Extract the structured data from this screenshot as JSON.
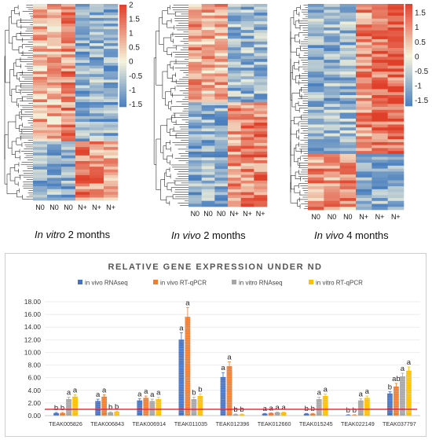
{
  "heatmaps": [
    {
      "caption_italic": "In vitro",
      "caption_rest": " 2 months",
      "columns": [
        "N0",
        "N0",
        "N0",
        "N+",
        "N+",
        "N+"
      ],
      "colorbar_ticks": [
        "2",
        "1.5",
        "1",
        "0.5",
        "0",
        "-0.5",
        "-1",
        "-1.5"
      ],
      "colorbar_range": [
        -1.6,
        2.0
      ]
    },
    {
      "caption_italic": "In vivo",
      "caption_rest": " 2 months",
      "columns": [
        "N0",
        "N0",
        "N0",
        "N+",
        "N+",
        "N+"
      ],
      "colorbar_ticks": [],
      "colorbar_range": [
        -1.6,
        2.0
      ]
    },
    {
      "caption_italic": "In vivo",
      "caption_rest": " 4 months",
      "columns": [
        "N0",
        "N0",
        "N0",
        "N+",
        "N+",
        "N+"
      ],
      "colorbar_ticks": [
        "1.5",
        "1",
        "0.5",
        "0",
        "-0.5",
        "-1",
        "-1.5"
      ],
      "colorbar_range": [
        -1.7,
        1.8
      ]
    }
  ],
  "colors": {
    "heat_low": "#4a7fbf",
    "heat_mid": "#f6f4dc",
    "heat_high": "#e0402a",
    "bar_in_vivo_rnaseq": "#4472c4",
    "bar_in_vivo_rtqpcr": "#ed7d31",
    "bar_in_vitro_rnaseq": "#a5a5a5",
    "bar_in_vitro_rtqpcr": "#ffc000",
    "reference_line": "#e0203a"
  },
  "chart_data": {
    "type": "bar",
    "title": "RELATIVE GENE EXPRESSION UNDER ND",
    "legend_position": "top",
    "categories": [
      "TEAK005826",
      "TEAK006843",
      "TEAK006914",
      "TEAK011035",
      "TEAK012396",
      "TEAK012660",
      "TEAK015245",
      "TEAK022149",
      "TEAK037797"
    ],
    "series": [
      {
        "name": "in vivo RNAseq",
        "values": [
          0.4,
          2.3,
          2.4,
          12.0,
          6.1,
          0.3,
          0.3,
          0.1,
          3.5
        ],
        "errors": [
          0.1,
          0.3,
          0.3,
          1.1,
          0.7,
          0.05,
          0.05,
          0.05,
          0.3
        ]
      },
      {
        "name": "in vivo RT-qPCR",
        "values": [
          0.4,
          3.0,
          2.8,
          15.6,
          7.8,
          0.4,
          0.3,
          0.1,
          4.6
        ],
        "errors": [
          0.1,
          0.3,
          0.3,
          1.5,
          0.7,
          0.05,
          0.05,
          0.05,
          0.5
        ]
      },
      {
        "name": "in vitro RNAseq",
        "values": [
          2.6,
          0.5,
          2.3,
          2.6,
          0.2,
          0.5,
          2.6,
          2.4,
          6.2
        ],
        "errors": [
          0.3,
          0.1,
          0.3,
          0.3,
          0.05,
          0.05,
          0.3,
          0.3,
          0.5
        ]
      },
      {
        "name": "in vitro RT-qPCR",
        "values": [
          3.0,
          0.6,
          2.6,
          3.1,
          0.2,
          0.5,
          3.1,
          2.8,
          7.1
        ],
        "errors": [
          0.3,
          0.1,
          0.3,
          0.3,
          0.05,
          0.05,
          0.3,
          0.3,
          0.6
        ]
      }
    ],
    "significance": [
      [
        "b",
        "b",
        "a",
        "a"
      ],
      [
        "a",
        "a",
        "b",
        "b"
      ],
      [
        "a",
        "a",
        "a",
        "a"
      ],
      [
        "a",
        "a",
        "b",
        "b"
      ],
      [
        "a",
        "a",
        "b",
        "b"
      ],
      [
        "a",
        "a",
        "a",
        "a"
      ],
      [
        "b",
        "b",
        "a",
        "a"
      ],
      [
        "b",
        "b",
        "a",
        "a"
      ],
      [
        "b",
        "ab",
        "a",
        "a"
      ]
    ],
    "y_ticks": [
      "0.00",
      "2.00",
      "4.00",
      "6.00",
      "8.00",
      "10.00",
      "12.00",
      "14.00",
      "16.00",
      "18.00"
    ],
    "ylim": [
      0,
      18
    ],
    "reference_line_value": 1.0,
    "xlabel": "",
    "ylabel": ""
  }
}
